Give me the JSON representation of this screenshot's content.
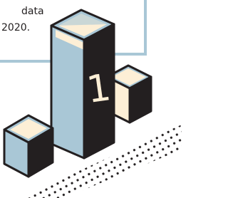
{
  "text_lines": [
    "data",
    "2020."
  ],
  "podium": {
    "label": "1"
  }
}
